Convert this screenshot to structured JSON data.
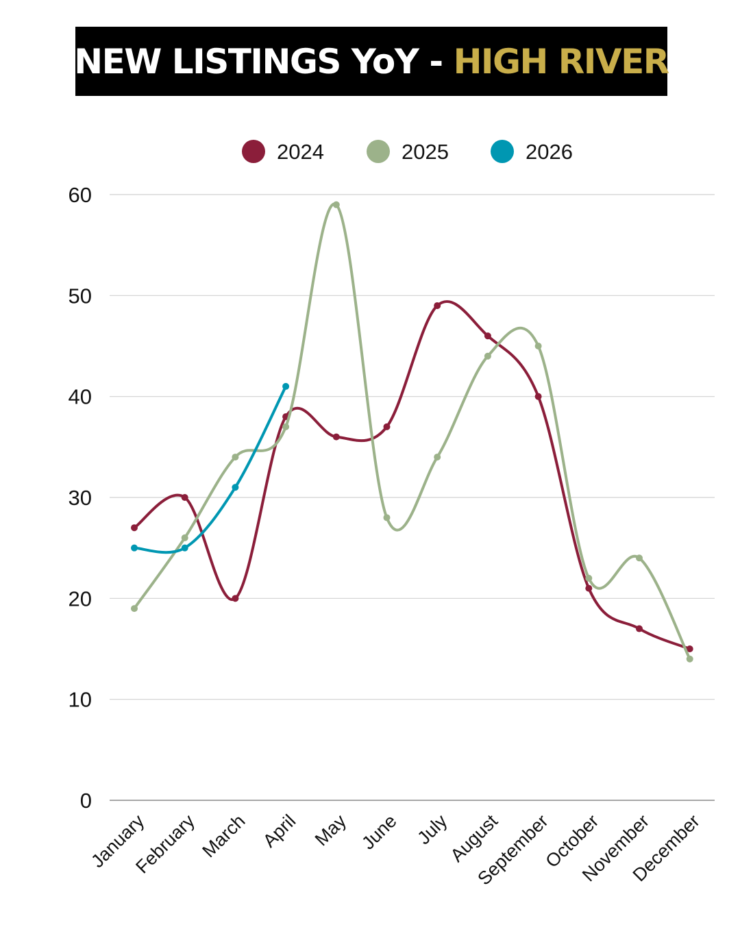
{
  "title": {
    "part1": "NEW LISTINGS YoY",
    "separator": " - ",
    "part2": "HIGH RIVER",
    "highlight_color": "#C9AE4A"
  },
  "chart_data": {
    "type": "line",
    "categories": [
      "January",
      "February",
      "March",
      "April",
      "May",
      "June",
      "July",
      "August",
      "September",
      "October",
      "November",
      "December"
    ],
    "series": [
      {
        "name": "2024",
        "color": "#8B1E3A",
        "values": [
          27,
          30,
          20,
          38,
          36,
          37,
          49,
          46,
          40,
          21,
          17,
          15
        ]
      },
      {
        "name": "2025",
        "color": "#9CB28A",
        "values": [
          19,
          26,
          34,
          37,
          59,
          28,
          34,
          44,
          45,
          22,
          24,
          14
        ]
      },
      {
        "name": "2026",
        "color": "#0097B2",
        "values": [
          25,
          25,
          31,
          41,
          null,
          null,
          null,
          null,
          null,
          null,
          null,
          null
        ]
      }
    ],
    "yticks": [
      0,
      10,
      20,
      30,
      40,
      50,
      60
    ],
    "ylim": [
      0,
      60
    ],
    "grid": true,
    "legend": "top-center",
    "smooth": true
  }
}
